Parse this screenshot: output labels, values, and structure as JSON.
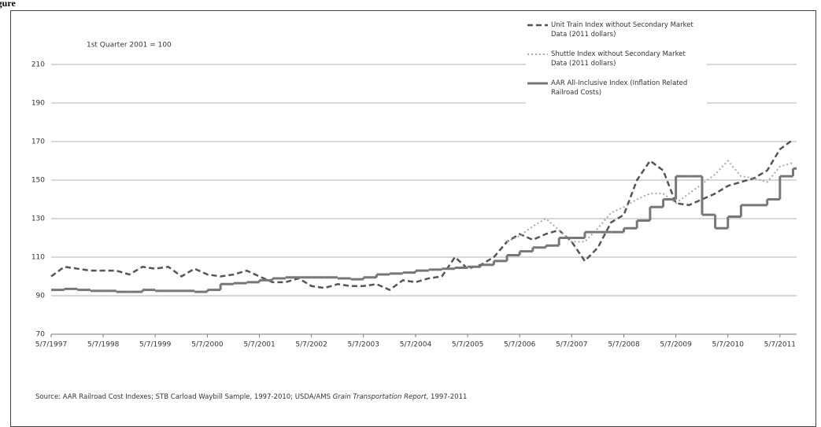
{
  "page_label": "Figure",
  "chart_data": {
    "type": "line",
    "annotation": "1st Quarter 2001 = 100",
    "source": {
      "before": "Source: AAR Railroad Cost Indexes; STB Carload Waybill Sample, 1997-2010;  USDA/AMS ",
      "italic": "Grain Transportation Report",
      "after": ", 1997-2011"
    },
    "x": [
      "1997-05-07",
      "1997-08-07",
      "1997-11-07",
      "1998-02-07",
      "1998-05-07",
      "1998-08-07",
      "1998-11-07",
      "1999-02-07",
      "1999-05-07",
      "1999-08-07",
      "1999-11-07",
      "2000-02-07",
      "2000-05-07",
      "2000-08-07",
      "2000-11-07",
      "2001-02-07",
      "2001-05-07",
      "2001-08-07",
      "2001-11-07",
      "2002-02-07",
      "2002-05-07",
      "2002-08-07",
      "2002-11-07",
      "2003-02-07",
      "2003-05-07",
      "2003-08-07",
      "2003-11-07",
      "2004-02-07",
      "2004-05-07",
      "2004-08-07",
      "2004-11-07",
      "2005-02-07",
      "2005-05-07",
      "2005-08-07",
      "2005-11-07",
      "2006-02-07",
      "2006-05-07",
      "2006-08-07",
      "2006-11-07",
      "2007-02-07",
      "2007-05-07",
      "2007-08-07",
      "2007-11-07",
      "2008-02-07",
      "2008-05-07",
      "2008-08-07",
      "2008-11-07",
      "2009-02-07",
      "2009-05-07",
      "2009-08-07",
      "2009-11-07",
      "2010-02-07",
      "2010-05-07",
      "2010-08-07",
      "2010-11-07",
      "2011-02-07",
      "2011-05-07",
      "2011-08-07"
    ],
    "series": [
      {
        "name": "Unit Train Index without Secondary Market Data (2011 dollars)",
        "color": "#555555",
        "dash": "7,4",
        "width": 2.5,
        "values": [
          100,
          105,
          104,
          103,
          103,
          103,
          101,
          105,
          104,
          105,
          100,
          104,
          101,
          100,
          101,
          103,
          100,
          97,
          97,
          99,
          95,
          94,
          96,
          95,
          95,
          96,
          93,
          98,
          97,
          99,
          100,
          110,
          104,
          106,
          110,
          118,
          122,
          119,
          122,
          124,
          118,
          108,
          115,
          128,
          132,
          150,
          160,
          155,
          138,
          137,
          140,
          143,
          147,
          149,
          151,
          155,
          166,
          171
        ]
      },
      {
        "name": "Shuttle Index without Secondary Market Data (2011 dollars)",
        "color": "#aaaaaa",
        "dash": "2,3",
        "width": 2,
        "values": [
          null,
          null,
          null,
          null,
          null,
          null,
          null,
          null,
          null,
          null,
          null,
          null,
          null,
          null,
          null,
          null,
          null,
          null,
          null,
          null,
          null,
          null,
          null,
          null,
          null,
          null,
          null,
          null,
          null,
          null,
          null,
          null,
          null,
          null,
          null,
          118,
          121,
          126,
          130,
          124,
          118,
          118,
          125,
          133,
          136,
          140,
          143,
          143,
          138,
          143,
          148,
          153,
          160,
          152,
          151,
          149,
          157,
          159
        ]
      },
      {
        "name": "AAR All-Inclusive Index (Inflation Related Railroad Costs)",
        "color": "#777777",
        "dash": "none",
        "width": 3,
        "step": true,
        "values": [
          93,
          93.5,
          93,
          92.5,
          92.5,
          92,
          92,
          93,
          92.5,
          92.5,
          92.5,
          92,
          93,
          96,
          96.5,
          97,
          98,
          99,
          99.5,
          99.5,
          99.5,
          99.5,
          99,
          98.5,
          99.5,
          101,
          101.5,
          102,
          103,
          103.5,
          104,
          104.5,
          105,
          106,
          108,
          111,
          113,
          115,
          116,
          120,
          120,
          123,
          123,
          123,
          125,
          129,
          136,
          140,
          152,
          152,
          132,
          125,
          131,
          137,
          137,
          140,
          152,
          156
        ]
      }
    ],
    "xlim": [
      "1997-05-07",
      "2011-09-01"
    ],
    "xticks": [
      {
        "value": "1997-05-07",
        "label": "5/7/1997"
      },
      {
        "value": "1998-05-07",
        "label": "5/7/1998"
      },
      {
        "value": "1999-05-07",
        "label": "5/7/1999"
      },
      {
        "value": "2000-05-07",
        "label": "5/7/2000"
      },
      {
        "value": "2001-05-07",
        "label": "5/7/2001"
      },
      {
        "value": "2002-05-07",
        "label": "5/7/2002"
      },
      {
        "value": "2003-05-07",
        "label": "5/7/2003"
      },
      {
        "value": "2004-05-07",
        "label": "5/7/2004"
      },
      {
        "value": "2005-05-07",
        "label": "5/7/2005"
      },
      {
        "value": "2006-05-07",
        "label": "5/7/2006"
      },
      {
        "value": "2007-05-07",
        "label": "5/7/2007"
      },
      {
        "value": "2008-05-07",
        "label": "5/7/2008"
      },
      {
        "value": "2009-05-07",
        "label": "5/7/2009"
      },
      {
        "value": "2010-05-07",
        "label": "5/7/2010"
      },
      {
        "value": "2011-05-07",
        "label": "5/7/2011"
      }
    ],
    "ylim": [
      70,
      210
    ],
    "yticks": [
      70,
      90,
      110,
      130,
      150,
      170,
      190,
      210
    ],
    "grid": true,
    "legend": "top-right"
  }
}
